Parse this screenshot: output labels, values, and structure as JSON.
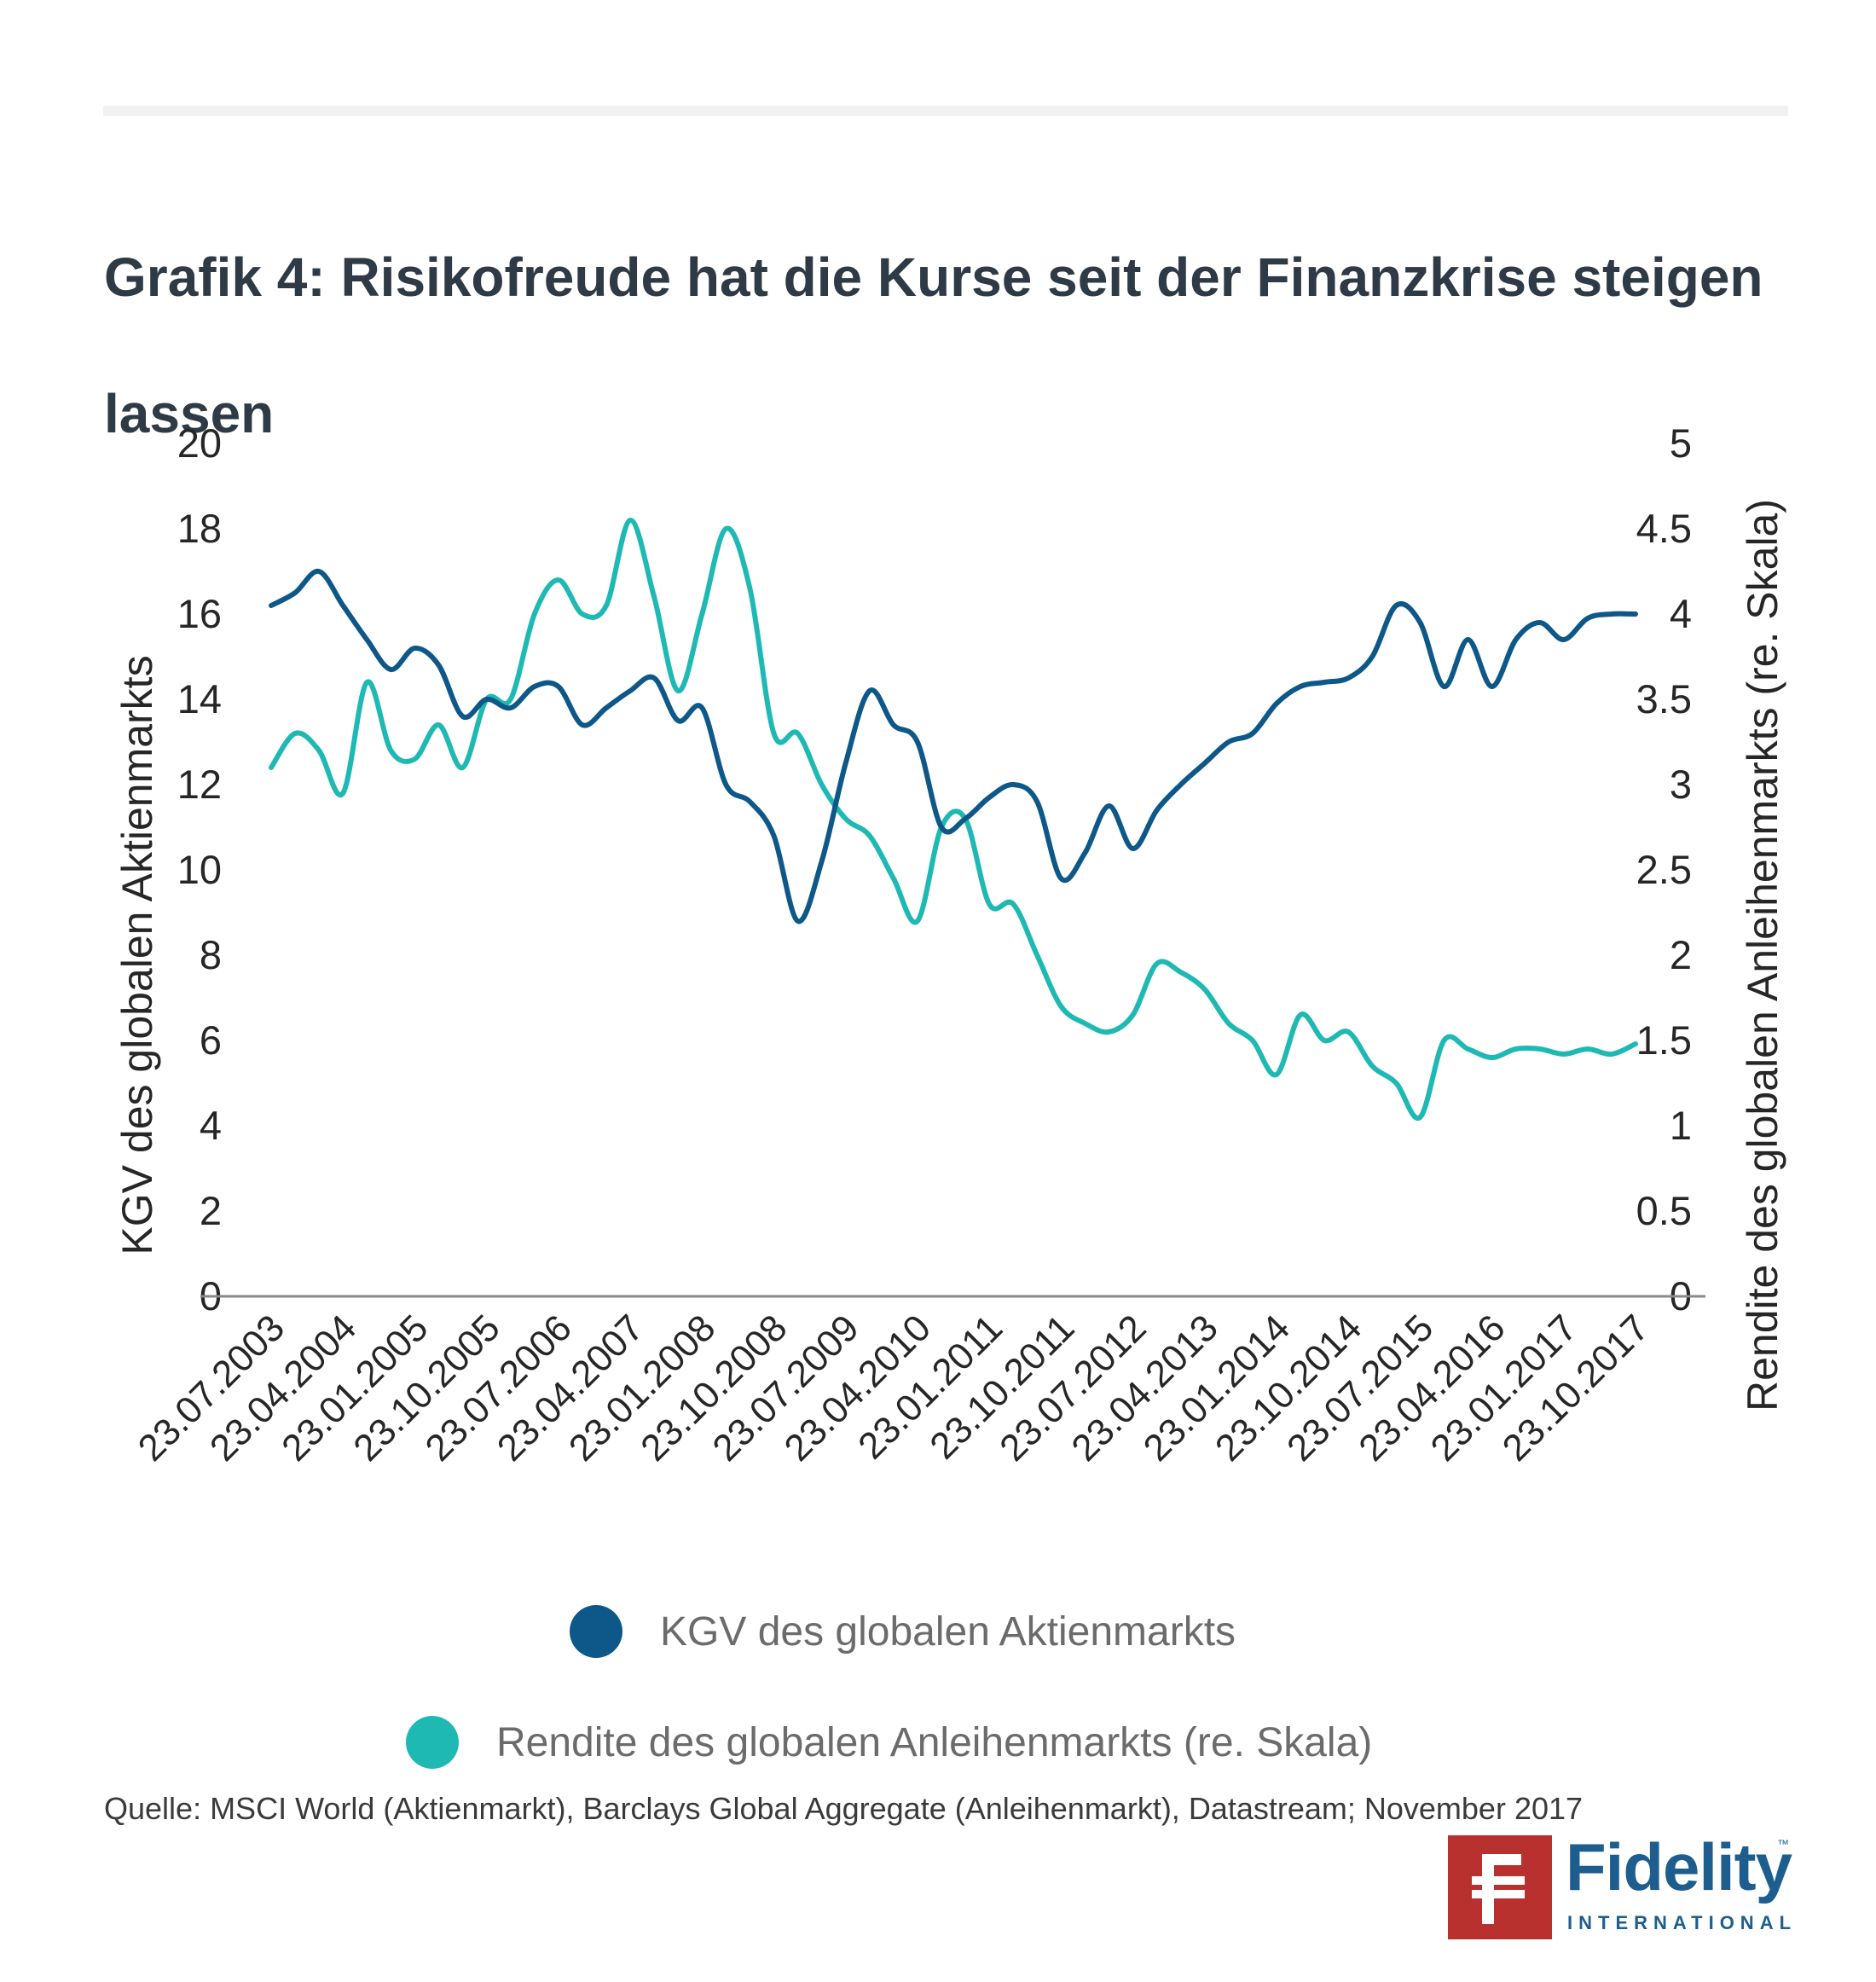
{
  "title": "Grafik 4: Risikofreude hat die Kurse seit der Finanzkrise steigen lassen",
  "source": "Quelle: MSCI World (Aktienmarkt), Barclays Global Aggregate (Anleihenmarkt), Datastream; November 2017",
  "logo": {
    "word": "Fidelity",
    "sub": "INTERNATIONAL",
    "tm": "™",
    "mark": "F"
  },
  "colors": {
    "pe_line": "#0d5889",
    "yield_line": "#1fb9b4",
    "axis": "#8a8a8a",
    "title": "#2e3a45"
  },
  "chart_data": {
    "type": "line",
    "ylabel_left": "KGV des globalen Aktienmarkts",
    "ylabel_right": "Rendite des globalen Anleihenmarkts (re. Skala)",
    "ylim_left": [
      0,
      20
    ],
    "ylim_right": [
      0,
      5
    ],
    "yticks_left": [
      "0",
      "2",
      "4",
      "6",
      "8",
      "10",
      "12",
      "14",
      "16",
      "18",
      "20"
    ],
    "yticks_right": [
      "0",
      "0.5",
      "1",
      "1.5",
      "2",
      "2.5",
      "3",
      "3.5",
      "4",
      "4.5",
      "5"
    ],
    "x_tick_labels": [
      "23.07.2003",
      "23.04.2004",
      "23.01.2005",
      "23.10.2005",
      "23.07.2006",
      "23.04.2007",
      "23.01.2008",
      "23.10.2008",
      "23.07.2009",
      "23.04.2010",
      "23.01.2011",
      "23.10.2011",
      "23.07.2012",
      "23.04.2013",
      "23.01.2014",
      "23.10.2014",
      "23.07.2015",
      "23.04.2016",
      "23.01.2017",
      "23.10.2017"
    ],
    "x": [
      "23.07.2003",
      "23.10.2003",
      "23.01.2004",
      "23.04.2004",
      "23.07.2004",
      "23.10.2004",
      "23.01.2005",
      "23.04.2005",
      "23.07.2005",
      "23.10.2005",
      "23.01.2006",
      "23.04.2006",
      "23.07.2006",
      "23.10.2006",
      "23.01.2007",
      "23.04.2007",
      "23.07.2007",
      "23.10.2007",
      "23.01.2008",
      "23.04.2008",
      "23.07.2008",
      "23.10.2008",
      "23.01.2009",
      "23.04.2009",
      "23.07.2009",
      "23.10.2009",
      "23.01.2010",
      "23.04.2010",
      "23.07.2010",
      "23.10.2010",
      "23.01.2011",
      "23.04.2011",
      "23.07.2011",
      "23.10.2011",
      "23.01.2012",
      "23.04.2012",
      "23.07.2012",
      "23.10.2012",
      "23.01.2013",
      "23.04.2013",
      "23.07.2013",
      "23.10.2013",
      "23.01.2014",
      "23.04.2014",
      "23.07.2014",
      "23.10.2014",
      "23.01.2015",
      "23.04.2015",
      "23.07.2015",
      "23.10.2015",
      "23.01.2016",
      "23.04.2016",
      "23.07.2016",
      "23.10.2016",
      "23.01.2017",
      "23.04.2017",
      "23.07.2017",
      "23.10.2017"
    ],
    "series": [
      {
        "name": "KGV des globalen Aktienmarkts",
        "axis": "left",
        "values": [
          16.2,
          16.5,
          17.0,
          16.2,
          15.4,
          14.7,
          15.2,
          14.8,
          13.6,
          14.0,
          13.8,
          14.3,
          14.3,
          13.4,
          13.8,
          14.2,
          14.5,
          13.5,
          13.8,
          12.0,
          11.6,
          10.8,
          8.8,
          10.2,
          12.5,
          14.2,
          13.4,
          13.0,
          11.0,
          11.2,
          11.7,
          12.0,
          11.6,
          9.8,
          10.4,
          11.5,
          10.5,
          11.4,
          12.0,
          12.5,
          13.0,
          13.2,
          13.9,
          14.3,
          14.4,
          14.5,
          15.0,
          16.2,
          15.8,
          14.3,
          15.4,
          14.3,
          15.4,
          15.8,
          15.4,
          15.9,
          16.0,
          16.0
        ]
      },
      {
        "name": "Rendite des globalen Anleihenmarkts (re. Skala)",
        "axis": "right",
        "values": [
          3.1,
          3.3,
          3.2,
          2.95,
          3.6,
          3.2,
          3.15,
          3.35,
          3.1,
          3.5,
          3.5,
          4.0,
          4.2,
          4.0,
          4.05,
          4.55,
          4.1,
          3.55,
          4.0,
          4.5,
          4.15,
          3.3,
          3.3,
          3.0,
          2.8,
          2.7,
          2.45,
          2.2,
          2.75,
          2.8,
          2.3,
          2.3,
          2.0,
          1.7,
          1.6,
          1.55,
          1.65,
          1.95,
          1.9,
          1.8,
          1.6,
          1.5,
          1.3,
          1.65,
          1.5,
          1.55,
          1.35,
          1.25,
          1.05,
          1.5,
          1.45,
          1.4,
          1.45,
          1.45,
          1.42,
          1.45,
          1.42,
          1.48
        ]
      }
    ],
    "grid": false,
    "legend_position": "bottom"
  }
}
